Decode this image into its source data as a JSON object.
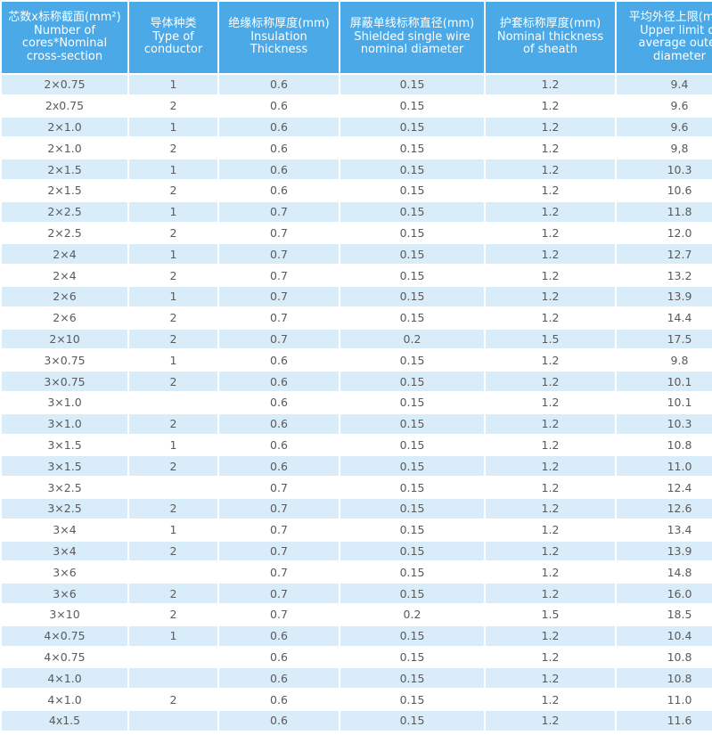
{
  "headers": [
    {
      "zh": "芯数x标称截面(mm²)",
      "en1": "Number of",
      "en2": "cores*Nominal",
      "en3": "cross-section"
    },
    {
      "zh": "导体种类",
      "en1": "Type of",
      "en2": "conductor",
      "en3": ""
    },
    {
      "zh": "绝缘标称厚度(mm)",
      "en1": "Insulation Thickness",
      "en2": "",
      "en3": ""
    },
    {
      "zh": "屏蔽单线标称直径(mm)",
      "en1": "Shielded single wire",
      "en2": "nominal diameter",
      "en3": ""
    },
    {
      "zh": "护套标称厚度(mm)",
      "en1": "Nominal thickness",
      "en2": "of sheath",
      "en3": ""
    },
    {
      "zh": "平均外径上限(mm)",
      "en1": "Upper limit of",
      "en2": "average outer",
      "en3": "diameter"
    }
  ],
  "rows": [
    [
      "2×0.75",
      "1",
      "0.6",
      "0.15",
      "1.2",
      "9.4"
    ],
    [
      "2x0.75",
      "2",
      "0.6",
      "0.15",
      "1.2",
      "9.6"
    ],
    [
      "2×1.0",
      "1",
      "0.6",
      "0.15",
      "1.2",
      "9.6"
    ],
    [
      "2×1.0",
      "2",
      "0.6",
      "0.15",
      "1.2",
      "9,8"
    ],
    [
      "2×1.5",
      "1",
      "0.6",
      "0.15",
      "1.2",
      "10.3"
    ],
    [
      "2×1.5",
      "2",
      "0.6",
      "0.15",
      "1.2",
      "10.6"
    ],
    [
      "2×2.5",
      "1",
      "0.7",
      "0.15",
      "1.2",
      "11.8"
    ],
    [
      "2×2.5",
      "2",
      "0.7",
      "0.15",
      "1.2",
      "12.0"
    ],
    [
      "2×4",
      "1",
      "0.7",
      "0.15",
      "1.2",
      "12.7"
    ],
    [
      "2×4",
      "2",
      "0.7",
      "0.15",
      "1.2",
      "13.2"
    ],
    [
      "2×6",
      "1",
      "0.7",
      "0.15",
      "1.2",
      "13.9"
    ],
    [
      "2×6",
      "2",
      "0.7",
      "0.15",
      "1.2",
      "14.4"
    ],
    [
      "2×10",
      "2",
      "0.7",
      "0.2",
      "1.5",
      "17.5"
    ],
    [
      "3×0.75",
      "1",
      "0.6",
      "0.15",
      "1.2",
      "9.8"
    ],
    [
      "3×0.75",
      "2",
      "0.6",
      "0.15",
      "1.2",
      "10.1"
    ],
    [
      "3×1.0",
      "",
      "0.6",
      "0.15",
      "1.2",
      "10.1"
    ],
    [
      "3×1.0",
      "2",
      "0.6",
      "0.15",
      "1.2",
      "10.3"
    ],
    [
      "3×1.5",
      "1",
      "0.6",
      "0.15",
      "1.2",
      "10.8"
    ],
    [
      "3×1.5",
      "2",
      "0.6",
      "0.15",
      "1.2",
      "11.0"
    ],
    [
      "3×2.5",
      "",
      "0.7",
      "0.15",
      "1.2",
      "12.4"
    ],
    [
      "3×2.5",
      "2",
      "0.7",
      "0.15",
      "1.2",
      "12.6"
    ],
    [
      "3×4",
      "1",
      "0.7",
      "0.15",
      "1.2",
      "13.4"
    ],
    [
      "3×4",
      "2",
      "0.7",
      "0.15",
      "1.2",
      "13.9"
    ],
    [
      "3×6",
      "",
      "0.7",
      "0.15",
      "1.2",
      "14.8"
    ],
    [
      "3×6",
      "2",
      "0.7",
      "0.15",
      "1.2",
      "16.0"
    ],
    [
      "3×10",
      "2",
      "0.7",
      "0.2",
      "1.5",
      "18.5"
    ],
    [
      "4×0.75",
      "1",
      "0.6",
      "0.15",
      "1.2",
      "10.4"
    ],
    [
      "4×0.75",
      "",
      "0.6",
      "0.15",
      "1.2",
      "10.8"
    ],
    [
      "4×1.0",
      "",
      "0.6",
      "0.15",
      "1.2",
      "10.8"
    ],
    [
      "4×1.0",
      "2",
      "0.6",
      "0.15",
      "1.2",
      "11.0"
    ],
    [
      "4x1.5",
      "",
      "0.6",
      "0.15",
      "1.2",
      "11.6"
    ]
  ]
}
